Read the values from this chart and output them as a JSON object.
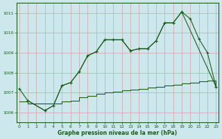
{
  "bg_color": "#cce8ec",
  "grid_color": "#d4a0a0",
  "line_color": "#1a5c1a",
  "xlabel": "Graphe pression niveau de la mer (hPa)",
  "ylim": [
    1005.5,
    1011.5
  ],
  "xlim": [
    -0.3,
    23.3
  ],
  "yticks": [
    1006,
    1007,
    1008,
    1009,
    1010,
    1011
  ],
  "xticks": [
    0,
    1,
    2,
    3,
    4,
    5,
    6,
    7,
    8,
    9,
    10,
    11,
    12,
    13,
    14,
    15,
    16,
    17,
    18,
    19,
    20,
    21,
    22,
    23
  ],
  "line1_x": [
    0,
    1,
    3,
    4,
    5,
    6,
    7,
    8,
    9,
    10,
    11,
    12,
    13,
    14,
    15,
    16,
    17,
    18,
    19,
    20,
    21,
    22,
    23
  ],
  "line1_y": [
    1007.2,
    1006.6,
    1006.1,
    1006.35,
    1007.35,
    1007.5,
    1008.05,
    1008.85,
    1009.05,
    1009.65,
    1009.65,
    1009.65,
    1009.1,
    1009.2,
    1009.2,
    1009.6,
    1010.5,
    1010.5,
    1011.05,
    1010.7,
    1009.7,
    1009.0,
    1007.3
  ],
  "line2_x": [
    1,
    3,
    4,
    5,
    6,
    7,
    8,
    9,
    10,
    11,
    12,
    13,
    14,
    15,
    16,
    17,
    18,
    19,
    23
  ],
  "line2_y": [
    1006.6,
    1006.1,
    1006.35,
    1007.35,
    1007.5,
    1008.05,
    1008.85,
    1009.05,
    1009.65,
    1009.65,
    1009.65,
    1009.1,
    1009.2,
    1009.2,
    1009.6,
    1010.5,
    1010.5,
    1011.05,
    1007.3
  ],
  "step_x": [
    0,
    1,
    2,
    3,
    4,
    5,
    6,
    7,
    8,
    9,
    10,
    11,
    12,
    13,
    14,
    15,
    16,
    17,
    18,
    19,
    20,
    21,
    22,
    23
  ],
  "step_y": [
    1006.55,
    1006.45,
    1006.45,
    1006.45,
    1006.45,
    1006.55,
    1006.6,
    1006.75,
    1006.85,
    1006.95,
    1007.0,
    1007.05,
    1007.1,
    1007.15,
    1007.2,
    1007.25,
    1007.3,
    1007.35,
    1007.4,
    1007.45,
    1007.5,
    1007.55,
    1007.6,
    1007.3
  ]
}
